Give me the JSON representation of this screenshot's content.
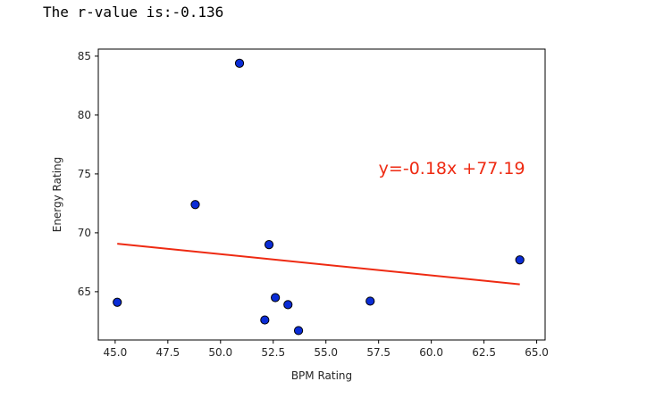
{
  "output": {
    "text": "The r-value is:-0.136"
  },
  "chart_data": {
    "type": "scatter",
    "title": "",
    "xlabel": "BPM Rating",
    "ylabel": "Energy Rating",
    "xlim": [
      44.2,
      65.4
    ],
    "ylim": [
      60.9,
      85.6
    ],
    "xticks": [
      45.0,
      47.5,
      50.0,
      52.5,
      55.0,
      57.5,
      60.0,
      62.5,
      65.0
    ],
    "xtick_labels": [
      "45.0",
      "47.5",
      "50.0",
      "52.5",
      "55.0",
      "57.5",
      "60.0",
      "62.5",
      "65.0"
    ],
    "yticks": [
      65,
      70,
      75,
      80,
      85
    ],
    "ytick_labels": [
      "65",
      "70",
      "75",
      "80",
      "85"
    ],
    "grid": false,
    "points": [
      {
        "x": 45.1,
        "y": 64.1
      },
      {
        "x": 48.8,
        "y": 72.4
      },
      {
        "x": 50.9,
        "y": 84.4
      },
      {
        "x": 52.1,
        "y": 62.6
      },
      {
        "x": 52.3,
        "y": 69.0
      },
      {
        "x": 52.6,
        "y": 64.5
      },
      {
        "x": 53.2,
        "y": 63.9
      },
      {
        "x": 53.7,
        "y": 61.7
      },
      {
        "x": 57.1,
        "y": 64.2
      },
      {
        "x": 64.2,
        "y": 67.7
      }
    ],
    "regression": {
      "x": [
        45.1,
        64.2
      ],
      "y": [
        69.07,
        65.63
      ],
      "color": "#ee2a12"
    },
    "annotation": {
      "text": "y=-0.18x +77.19",
      "x": 57.5,
      "y": 75.0,
      "color": "#ee2a12"
    },
    "marker_color": "#0a2cd6",
    "marker_edge": "#000000"
  }
}
